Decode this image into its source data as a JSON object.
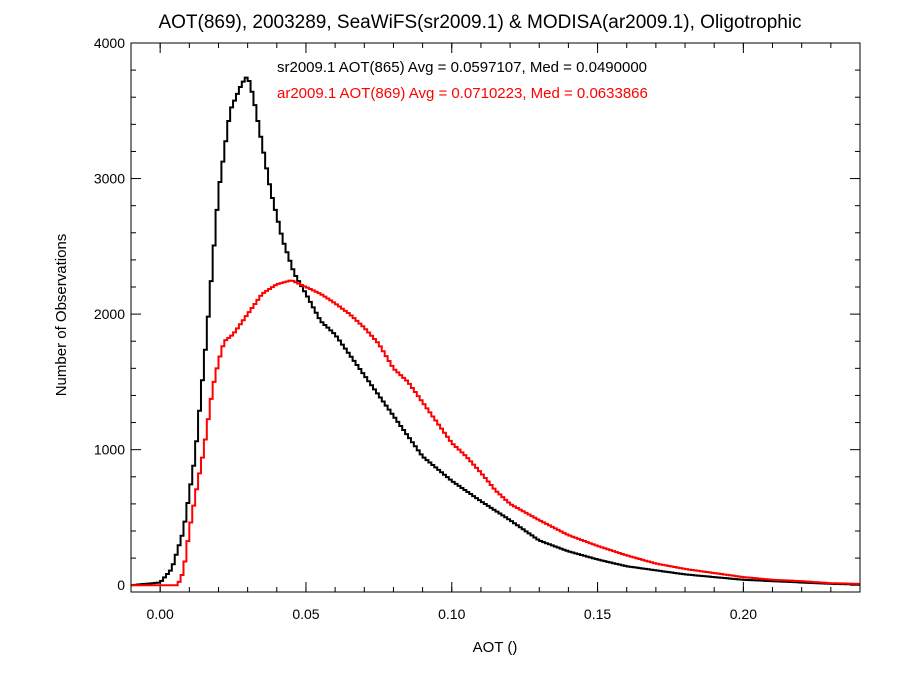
{
  "chart_data": {
    "type": "line",
    "title": "AOT(869), 2003289, SeaWiFS(sr2009.1) & MODISA(ar2009.1), Oligotrophic",
    "xlabel": "AOT ()",
    "ylabel": "Number of Observations",
    "xlim": [
      -0.01,
      0.24
    ],
    "ylim": [
      -50,
      4000
    ],
    "x_ticks": [
      0.0,
      0.05,
      0.1,
      0.15,
      0.2
    ],
    "x_tick_labels": [
      "0.00",
      "0.05",
      "0.10",
      "0.15",
      "0.20"
    ],
    "y_ticks": [
      0,
      1000,
      2000,
      3000,
      4000
    ],
    "y_tick_labels": [
      "0",
      "1000",
      "2000",
      "3000",
      "4000"
    ],
    "grid": false,
    "legend_position": "top-right",
    "series": [
      {
        "label": "sr2009.1 AOT(865) Avg = 0.0597107, Med = 0.0490000",
        "color": "#000000",
        "step": true,
        "x": [
          -0.01,
          0.0,
          0.004,
          0.008,
          0.012,
          0.016,
          0.02,
          0.024,
          0.028,
          0.03,
          0.032,
          0.035,
          0.038,
          0.042,
          0.046,
          0.05,
          0.055,
          0.06,
          0.065,
          0.07,
          0.075,
          0.08,
          0.085,
          0.09,
          0.1,
          0.11,
          0.12,
          0.13,
          0.14,
          0.15,
          0.16,
          0.17,
          0.18,
          0.19,
          0.2,
          0.21,
          0.22,
          0.23,
          0.24
        ],
        "y": [
          0,
          20,
          120,
          400,
          950,
          1850,
          2900,
          3500,
          3700,
          3760,
          3600,
          3250,
          2900,
          2550,
          2300,
          2150,
          1950,
          1850,
          1700,
          1550,
          1400,
          1250,
          1100,
          950,
          770,
          620,
          480,
          330,
          250,
          190,
          140,
          110,
          80,
          60,
          40,
          30,
          20,
          10,
          5
        ]
      },
      {
        "label": "ar2009.1 AOT(869) Avg = 0.0710223, Med = 0.0633866",
        "color": "#ff0000",
        "step": true,
        "x": [
          -0.01,
          0.0,
          0.006,
          0.008,
          0.01,
          0.012,
          0.015,
          0.018,
          0.02,
          0.022,
          0.025,
          0.03,
          0.035,
          0.04,
          0.045,
          0.05,
          0.055,
          0.06,
          0.065,
          0.07,
          0.075,
          0.08,
          0.085,
          0.09,
          0.095,
          0.1,
          0.105,
          0.11,
          0.115,
          0.12,
          0.13,
          0.14,
          0.15,
          0.16,
          0.17,
          0.18,
          0.19,
          0.2,
          0.21,
          0.22,
          0.23,
          0.24
        ],
        "y": [
          0,
          0,
          0,
          100,
          400,
          650,
          1000,
          1450,
          1650,
          1800,
          1850,
          2000,
          2150,
          2220,
          2250,
          2200,
          2150,
          2080,
          2000,
          1900,
          1780,
          1600,
          1500,
          1350,
          1200,
          1050,
          950,
          830,
          700,
          600,
          480,
          370,
          290,
          220,
          160,
          120,
          90,
          60,
          40,
          30,
          15,
          10
        ]
      }
    ]
  }
}
